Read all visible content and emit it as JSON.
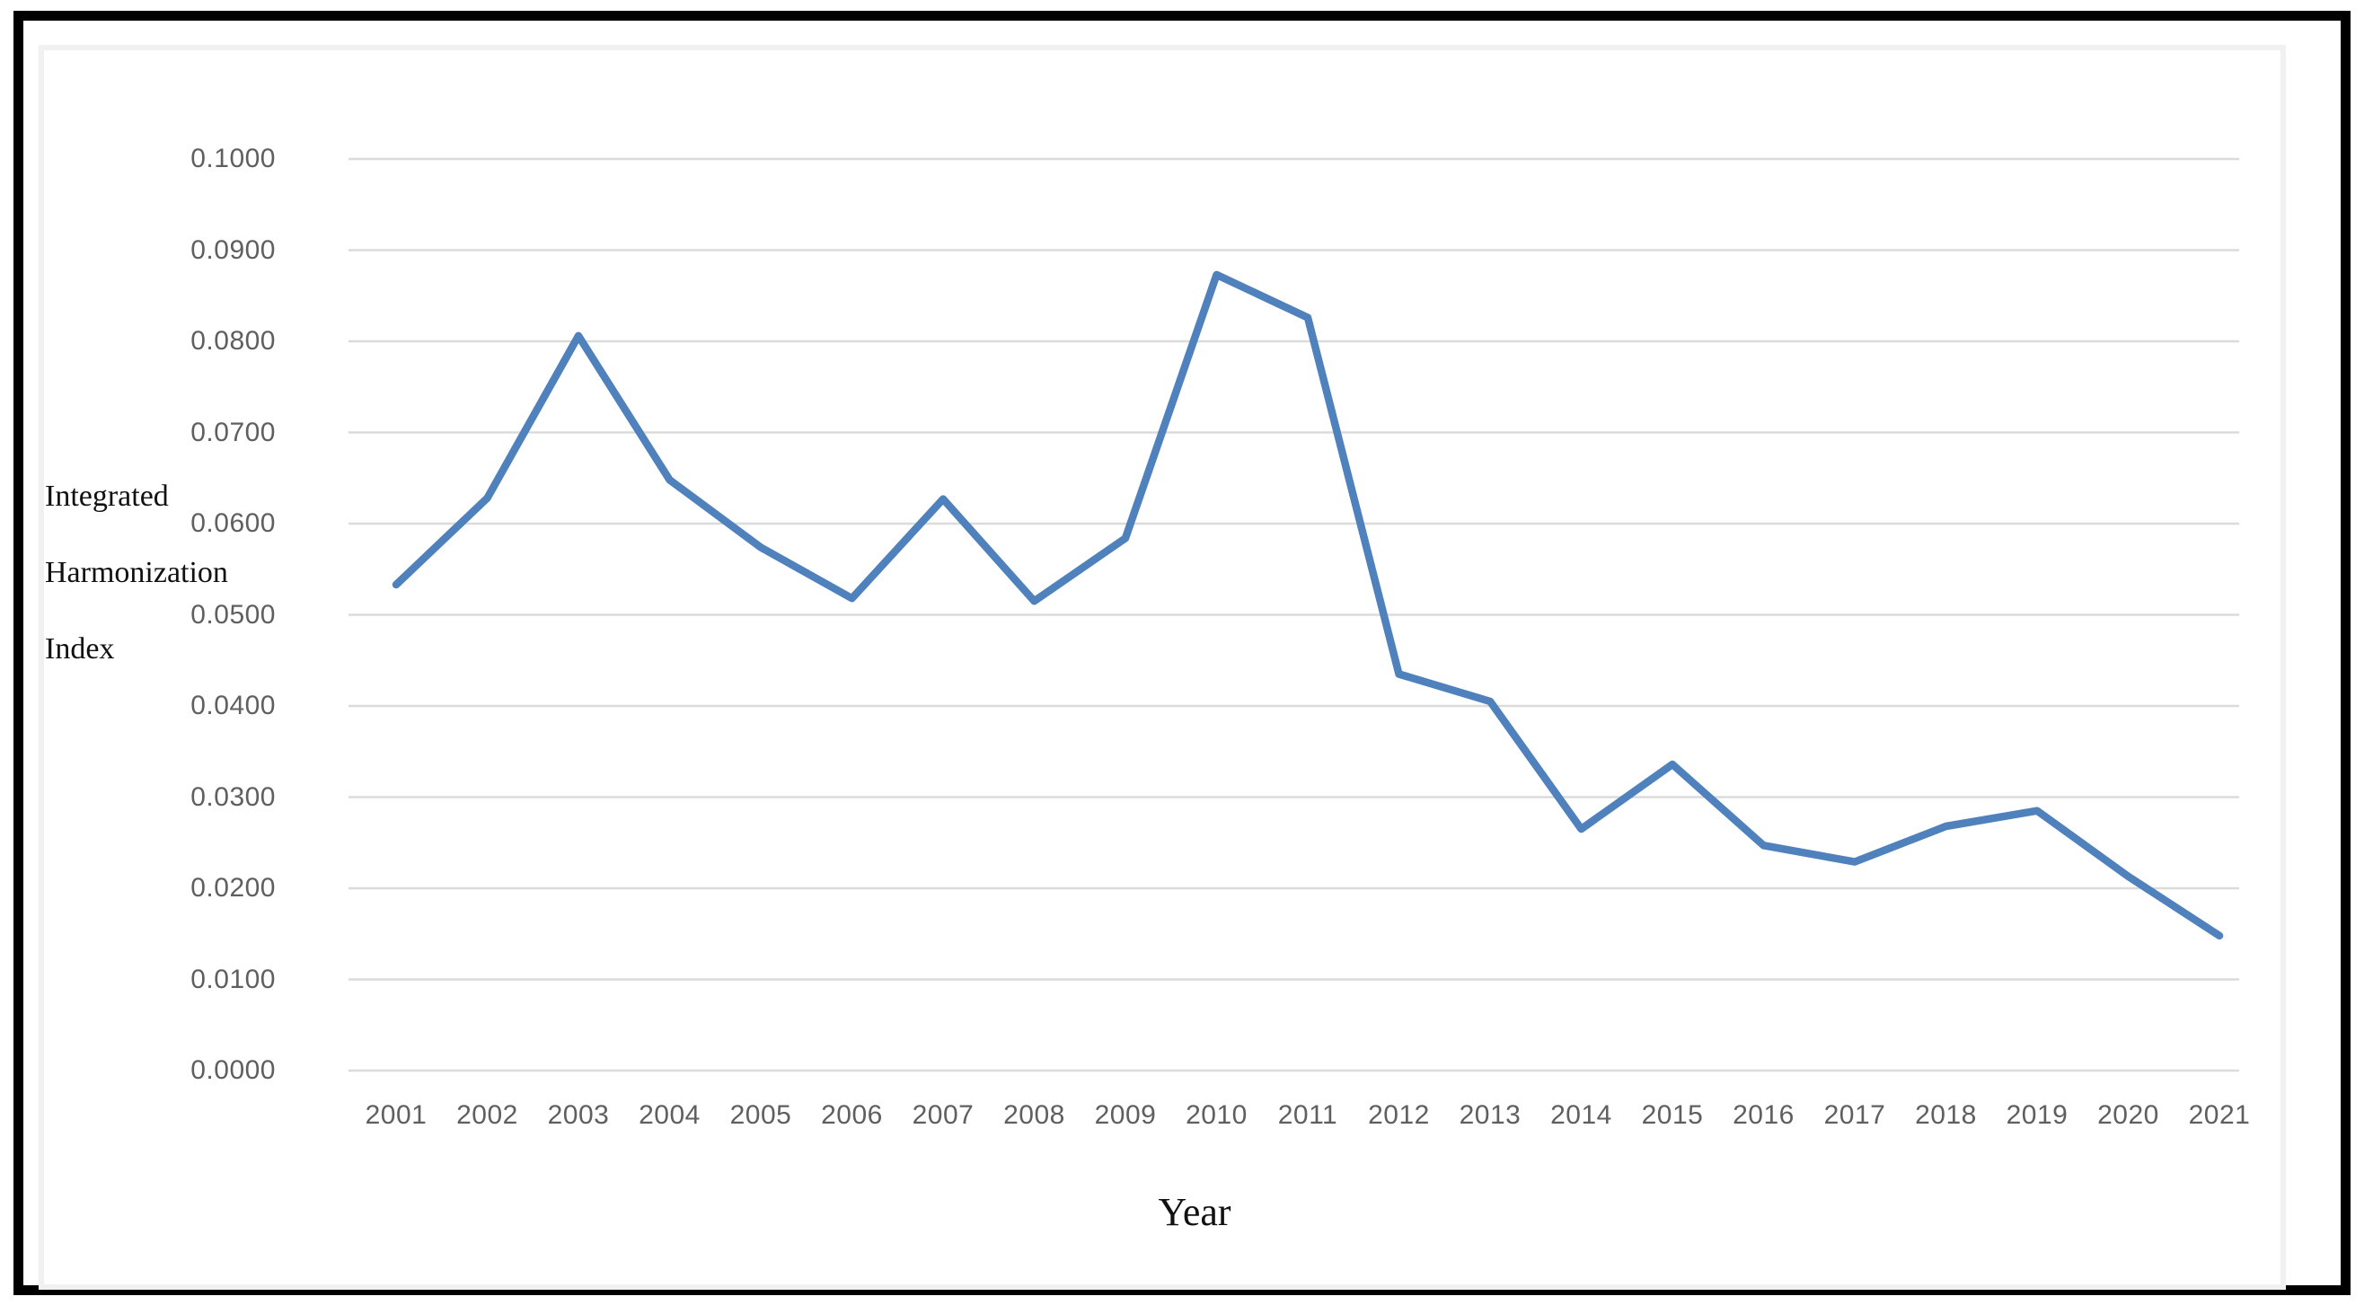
{
  "figure": {
    "background_color": "#ffffff",
    "frame_border_color": "#000000",
    "inner_edge_color": "#f1f1f1"
  },
  "chart_data": {
    "type": "line",
    "title": "",
    "xlabel": "Year",
    "ylabel_lines": [
      "Integrated",
      "Harmonization",
      "Index"
    ],
    "categories": [
      "2001",
      "2002",
      "2003",
      "2004",
      "2005",
      "2006",
      "2007",
      "2008",
      "2009",
      "2010",
      "2011",
      "2012",
      "2013",
      "2014",
      "2015",
      "2016",
      "2017",
      "2018",
      "2019",
      "2020",
      "2021"
    ],
    "series": [
      {
        "name": "Integrated Harmonization Index",
        "color": "#4f81bd",
        "values": [
          0.0533,
          0.0628,
          0.0806,
          0.0648,
          0.0574,
          0.0518,
          0.0627,
          0.0515,
          0.0584,
          0.0873,
          0.0826,
          0.0435,
          0.0405,
          0.0265,
          0.0336,
          0.0247,
          0.0229,
          0.0268,
          0.0285,
          0.0213,
          0.0148
        ]
      }
    ],
    "ylim": [
      0.0,
      0.1
    ],
    "ytick_labels": [
      "0.1000",
      "0.0900",
      "0.0800",
      "0.0700",
      "0.0600",
      "0.0500",
      "0.0400",
      "0.0300",
      "0.0200",
      "0.0100",
      "0.0000"
    ],
    "grid": "horizontal",
    "gridline_color": "#dbdbdb",
    "tick_label_color": "#5f5f5f",
    "legend": "none"
  }
}
